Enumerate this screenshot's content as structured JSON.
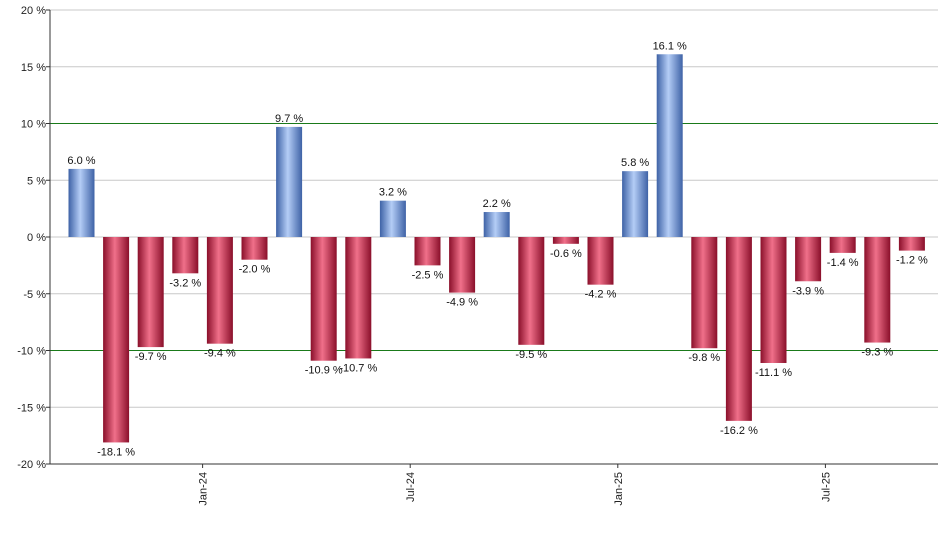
{
  "chart_data": {
    "type": "bar",
    "title": "",
    "xlabel": "",
    "ylabel": "",
    "ylim": [
      -20,
      20
    ],
    "y_ticks": [
      20,
      15,
      10,
      5,
      0,
      -5,
      -10,
      -15,
      -20
    ],
    "y_tick_suffix": " %",
    "reference_lines": [
      10,
      -10
    ],
    "grid": true,
    "x_tick_labels": [
      {
        "label": "Jan-24",
        "index": 3
      },
      {
        "label": "Jul-24",
        "index": 9
      },
      {
        "label": "Jan-25",
        "index": 15
      },
      {
        "label": "Jul-25",
        "index": 21
      }
    ],
    "values": [
      6.0,
      -18.1,
      -9.7,
      -3.2,
      -9.4,
      -2.0,
      9.7,
      -10.9,
      -10.7,
      3.2,
      -2.5,
      -4.9,
      2.2,
      -9.5,
      -0.6,
      -4.2,
      5.8,
      16.1,
      -9.8,
      -16.2,
      -11.1,
      -3.9,
      -1.4,
      -9.3,
      -1.2
    ],
    "labels": [
      "6.0 %",
      "-18.1 %",
      "-9.7 %",
      "-3.2 %",
      "-9.4 %",
      "-2.0 %",
      "9.7 %",
      "-10.9 %",
      "-10.7 %",
      "3.2 %",
      "-2.5 %",
      "-4.9 %",
      "2.2 %",
      "-9.5 %",
      "-0.6 %",
      "-4.2 %",
      "5.8 %",
      "16.1 %",
      "-9.8 %",
      "-16.2 %",
      "-11.1 %",
      "-3.9 %",
      "-1.4 %",
      "-9.3 %",
      "-1.2 %"
    ],
    "colors": {
      "positive_light": "#b4cdf6",
      "positive_dark": "#3e62a6",
      "negative_light": "#f0708a",
      "negative_dark": "#8a0f2a",
      "grid": "#c8c8c8",
      "reference_line": "#1a7a1a",
      "axis": "#333333"
    }
  }
}
